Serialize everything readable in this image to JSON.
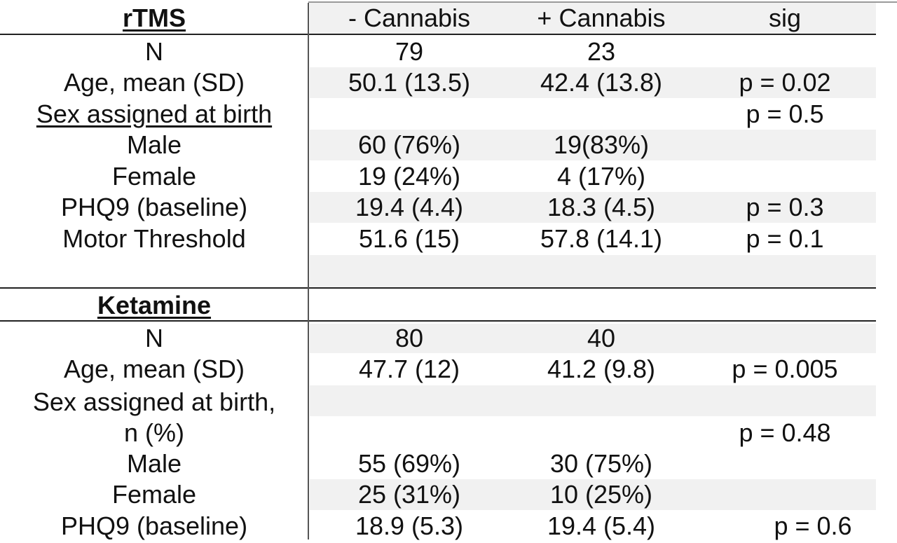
{
  "header": {
    "section": "rTMS",
    "col1": "- Cannabis",
    "col2": "+ Cannabis",
    "col3": "sig"
  },
  "rtms": {
    "n": {
      "label": "N",
      "a": "79",
      "b": "23",
      "sig": ""
    },
    "age": {
      "label": "Age, mean (SD)",
      "a": "50.1 (13.5)",
      "b": "42.4 (13.8)",
      "sig": "p = 0.02"
    },
    "sex": {
      "label": "Sex assigned at birth",
      "a": "",
      "b": "",
      "sig": "p = 0.5"
    },
    "male": {
      "label": "Male",
      "a": "60 (76%)",
      "b": "19(83%)",
      "sig": ""
    },
    "female": {
      "label": "Female",
      "a": "19 (24%)",
      "b": "4 (17%)",
      "sig": ""
    },
    "phq9": {
      "label": "PHQ9 (baseline)",
      "a": "19.4 (4.4)",
      "b": "18.3 (4.5)",
      "sig": "p = 0.3"
    },
    "motor": {
      "label": "Motor Threshold",
      "a": "51.6 (15)",
      "b": "57.8 (14.1)",
      "sig": "p = 0.1"
    }
  },
  "ketamine": {
    "section": "Ketamine",
    "n": {
      "label": "N",
      "a": "80",
      "b": "40",
      "sig": ""
    },
    "age": {
      "label": "Age, mean (SD)",
      "a": "47.7 (12)",
      "b": "41.2 (9.8)",
      "sig": "p = 0.005"
    },
    "sex": {
      "label1": "Sex assigned at birth,",
      "label2": "n (%)",
      "a": "",
      "b": "",
      "sig": "p = 0.48"
    },
    "male": {
      "label": "Male",
      "a": "55 (69%)",
      "b": "30 (75%)",
      "sig": ""
    },
    "female": {
      "label": "Female",
      "a": "25 (31%)",
      "b": "10 (25%)",
      "sig": ""
    },
    "phq9": {
      "label": "PHQ9 (baseline)",
      "a": "18.9 (5.3)",
      "b": "19.4 (5.4)",
      "sig": "p = 0.6"
    }
  }
}
